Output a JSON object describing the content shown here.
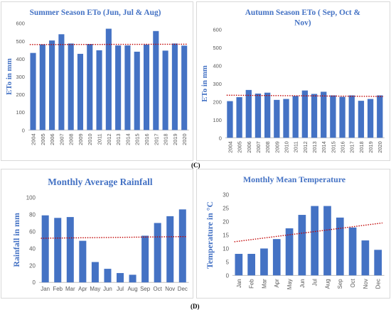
{
  "captions": {
    "c": "(C)",
    "d": "(D)"
  },
  "colors": {
    "bar": "#4472c4",
    "trend": "#c00000",
    "title": "#4472c4"
  },
  "chart_data": [
    {
      "type": "bar",
      "title": "Summer Season ETo (Jun, Jul & Aug)",
      "ylabel": "ETo in mm",
      "xlabel": "",
      "ylim": [
        0,
        600
      ],
      "yticks": [
        "0",
        "100",
        "200",
        "300",
        "400",
        "500",
        "600"
      ],
      "categories": [
        "2004",
        "2005",
        "2006",
        "2007",
        "2008",
        "2009",
        "2010",
        "2011",
        "2012",
        "2013",
        "2014",
        "2015",
        "2016",
        "2017",
        "2018",
        "2019",
        "2020"
      ],
      "values": [
        433,
        481,
        503,
        538,
        486,
        428,
        483,
        448,
        569,
        475,
        475,
        440,
        480,
        556,
        446,
        486,
        474
      ],
      "trendline": [
        480,
        482
      ],
      "grid": false,
      "legend": "none"
    },
    {
      "type": "bar",
      "title": "Autumn Season ETo ( Sep, Oct & Nov)",
      "ylabel": "ETo in mm",
      "xlabel": "",
      "ylim": [
        0,
        600
      ],
      "yticks": [
        "0",
        "100",
        "200",
        "300",
        "400",
        "500",
        "600"
      ],
      "categories": [
        "2004",
        "2005",
        "2006",
        "2007",
        "2008",
        "2009",
        "2010",
        "2011",
        "2012",
        "2013",
        "2014",
        "2015",
        "2016",
        "2017",
        "2018",
        "2019",
        "2020"
      ],
      "values": [
        203,
        225,
        265,
        245,
        250,
        210,
        215,
        232,
        262,
        243,
        255,
        235,
        227,
        235,
        205,
        215,
        235
      ],
      "trendline": [
        236,
        229
      ],
      "grid": false,
      "legend": "none"
    },
    {
      "type": "bar",
      "title": "Monthly Average Rainfall",
      "ylabel": "Rainfall in mm",
      "xlabel": "",
      "ylim": [
        0,
        100
      ],
      "yticks": [
        "0",
        "20",
        "40",
        "60",
        "80",
        "100"
      ],
      "categories": [
        "Jan",
        "Feb",
        "Mar",
        "Apr",
        "May",
        "Jun",
        "Jul",
        "Aug",
        "Sep",
        "Oct",
        "Nov",
        "Dec"
      ],
      "values": [
        79,
        76,
        77,
        49,
        24,
        16,
        11,
        9,
        55,
        70,
        78,
        86
      ],
      "trendline": [
        52,
        54
      ],
      "grid": false,
      "legend": "none"
    },
    {
      "type": "bar",
      "title": "Monthly Mean Temperature",
      "ylabel": "Temperature in °C",
      "xlabel": "",
      "ylim": [
        0,
        30
      ],
      "yticks": [
        "0",
        "5",
        "10",
        "15",
        "20",
        "25",
        "30"
      ],
      "categories": [
        "Jan",
        "Feb",
        "Mar",
        "Apr",
        "May",
        "Jun",
        "Jul",
        "Aug",
        "Sep",
        "Oct",
        "Nov",
        "Dec"
      ],
      "values": [
        8,
        8,
        10,
        13.5,
        17.5,
        22.5,
        25.8,
        25.8,
        21.5,
        17.8,
        13,
        9.5
      ],
      "trendline": [
        12.5,
        19.5
      ],
      "grid": false,
      "legend": "none"
    }
  ]
}
